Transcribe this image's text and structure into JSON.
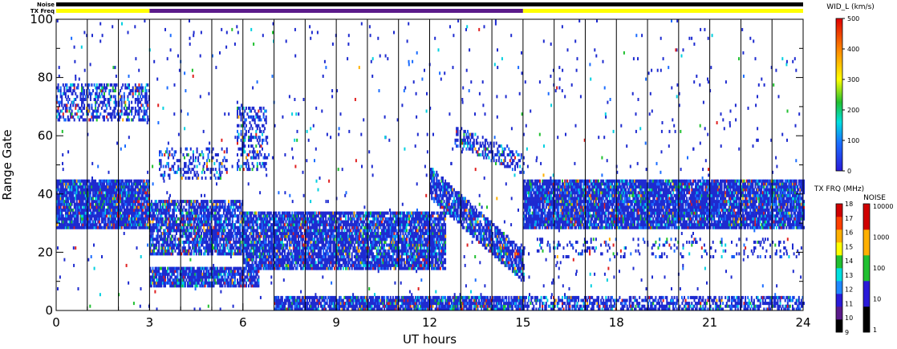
{
  "chart_data": {
    "type": "heatmap",
    "xlabel": "UT hours",
    "ylabel": "Range Gate",
    "xlim": [
      0,
      24
    ],
    "ylim": [
      0,
      100
    ],
    "x_ticks": [
      0,
      3,
      6,
      9,
      12,
      15,
      18,
      21,
      24
    ],
    "y_ticks": [
      0,
      20,
      40,
      60,
      80,
      100
    ],
    "top_bars": {
      "noise_label": "Noise",
      "txfreq_label": "TX Freq",
      "noise_color": "#000000",
      "txfreq_segments": [
        {
          "start": 0,
          "end": 3,
          "color": "#ffff00"
        },
        {
          "start": 3,
          "end": 15,
          "color": "#5a1a8a"
        },
        {
          "start": 15,
          "end": 24,
          "color": "#ffff00"
        }
      ]
    },
    "scan_boundaries": [
      1,
      2,
      3,
      4,
      5,
      6,
      7,
      8,
      9,
      10,
      11,
      12,
      13,
      14,
      15,
      16,
      17,
      18,
      19,
      20,
      21,
      22,
      23,
      24
    ],
    "scatter_regions": [
      {
        "t0": 0,
        "t1": 3,
        "g0": 28,
        "g1": 45,
        "density": 0.92
      },
      {
        "t0": 0,
        "t1": 3,
        "g0": 65,
        "g1": 78,
        "density": 0.45
      },
      {
        "t0": 3,
        "t1": 6.5,
        "g0": 8,
        "g1": 15,
        "density": 0.85
      },
      {
        "t0": 3,
        "t1": 6,
        "g0": 19,
        "g1": 38,
        "density": 0.75
      },
      {
        "t0": 3.3,
        "t1": 5.5,
        "g0": 45,
        "g1": 56,
        "density": 0.3
      },
      {
        "t0": 5.8,
        "t1": 6.8,
        "g0": 48,
        "g1": 70,
        "density": 0.35
      },
      {
        "t0": 6,
        "t1": 12.5,
        "g0": 14,
        "g1": 34,
        "density": 0.85
      },
      {
        "t0": 7,
        "t1": 15,
        "g0": 0,
        "g1": 5,
        "density": 0.85
      },
      {
        "t0": 15,
        "t1": 24,
        "g0": 28,
        "g1": 45,
        "density": 0.9
      },
      {
        "t0": 15,
        "t1": 24,
        "g0": 0,
        "g1": 5,
        "density": 0.55
      },
      {
        "t0": 15,
        "t1": 24,
        "g0": 18,
        "g1": 25,
        "density": 0.12
      }
    ],
    "slant_regions": [
      {
        "t0": 12,
        "t1": 15,
        "gstart0": 44,
        "gstart1": 15,
        "width": 10,
        "density": 0.8
      },
      {
        "t0": 12.8,
        "t1": 15,
        "gstart0": 60,
        "gstart1": 50,
        "width": 6,
        "density": 0.45
      }
    ],
    "velocity_colorbar": {
      "title": "WID_L (km/s)",
      "min": 0,
      "max": 500,
      "ticks": [
        0,
        100,
        200,
        300,
        400,
        500
      ]
    },
    "txfreq_colorbar": {
      "title": "TX FRQ (MHz)",
      "ticks": [
        9,
        10,
        11,
        12,
        13,
        14,
        15,
        16,
        17,
        18
      ],
      "colors": [
        "#000000",
        "#5a1a8a",
        "#2a1ad8",
        "#1e88ff",
        "#00e0e0",
        "#20c030",
        "#ffff00",
        "#ffb000",
        "#ff4000",
        "#d00000"
      ]
    },
    "noise_colorbar": {
      "title": "NOISE",
      "ticks": [
        "1",
        "10",
        "100",
        "1000",
        "10000"
      ],
      "colors": [
        "#000000",
        "#2a1ad8",
        "#20c030",
        "#ffb000",
        "#d00000"
      ]
    }
  }
}
